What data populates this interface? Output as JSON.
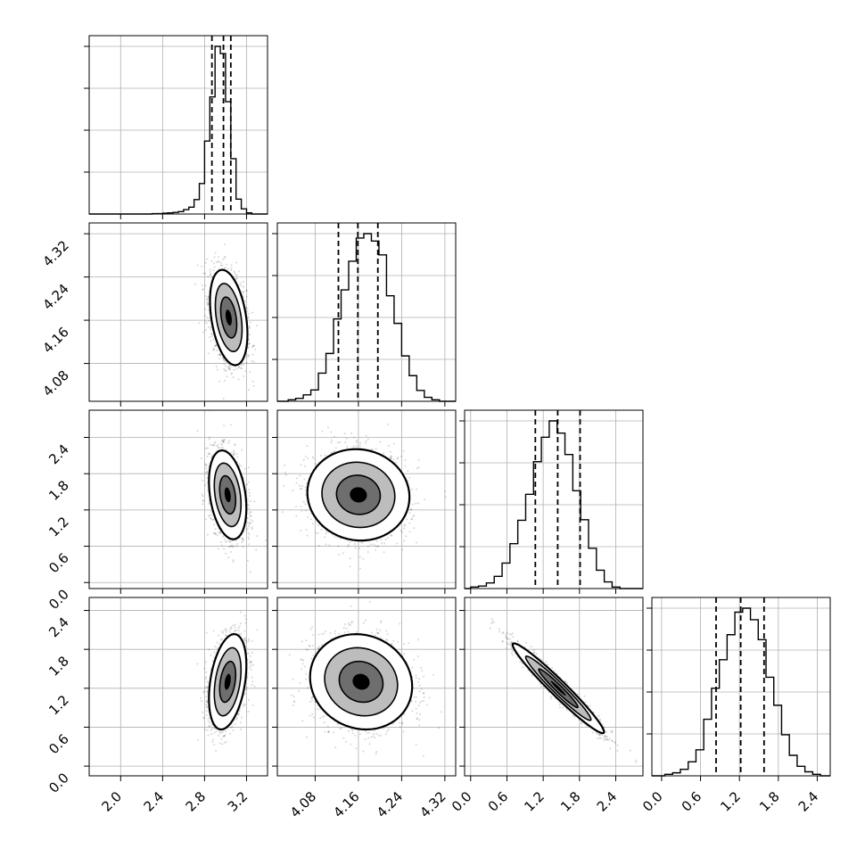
{
  "chart_data": {
    "type": "corner",
    "parameters": 4,
    "grid": true,
    "quantile_lines": "dashed",
    "axes": [
      {
        "ticks": [
          2.0,
          2.4,
          2.8,
          3.2
        ],
        "labels": [
          "2.0",
          "2.4",
          "2.8",
          "3.2"
        ],
        "range": [
          1.7,
          3.4
        ]
      },
      {
        "ticks": [
          4.08,
          4.16,
          4.24,
          4.32
        ],
        "labels": [
          "4.08",
          "4.16",
          "4.24",
          "4.32"
        ],
        "range": [
          4.01,
          4.34
        ]
      },
      {
        "ticks": [
          0.0,
          0.6,
          1.2,
          1.8,
          2.4
        ],
        "labels": [
          "0.0",
          "0.6",
          "1.2",
          "1.8",
          "2.4"
        ],
        "range": [
          -0.1,
          2.85
        ]
      },
      {
        "ticks": [
          0.0,
          0.6,
          1.2,
          1.8,
          2.4
        ],
        "labels": [
          "0.0",
          "0.6",
          "1.2",
          "1.8",
          "2.4"
        ],
        "range": [
          -0.15,
          2.6
        ]
      }
    ],
    "marginals": [
      {
        "param": 0,
        "bin_edges": [
          2.3,
          2.35,
          2.4,
          2.45,
          2.5,
          2.55,
          2.6,
          2.65,
          2.7,
          2.75,
          2.8,
          2.85,
          2.9,
          2.95,
          3.0,
          3.05,
          3.1,
          3.15,
          3.2,
          3.25
        ],
        "counts": [
          1,
          1,
          2,
          3,
          4,
          6,
          11,
          17,
          36,
          76,
          182,
          292,
          418,
          400,
          280,
          138,
          37,
          13,
          3
        ],
        "quantiles": [
          2.87,
          2.98,
          3.05
        ]
      },
      {
        "param": 1,
        "bin_edges": [
          4.03,
          4.044,
          4.058,
          4.072,
          4.086,
          4.1,
          4.114,
          4.128,
          4.142,
          4.156,
          4.17,
          4.184,
          4.198,
          4.212,
          4.226,
          4.24,
          4.254,
          4.268,
          4.282,
          4.296,
          4.31
        ],
        "counts": [
          3,
          6,
          13,
          23,
          57,
          97,
          167,
          226,
          284,
          331,
          340,
          325,
          297,
          214,
          158,
          92,
          52,
          22,
          8,
          3
        ],
        "quantiles": [
          4.123,
          4.159,
          4.196
        ]
      },
      {
        "param": 2,
        "bin_edges": [
          0.0,
          0.13,
          0.26,
          0.39,
          0.52,
          0.65,
          0.78,
          0.91,
          1.04,
          1.17,
          1.3,
          1.43,
          1.56,
          1.69,
          1.82,
          1.95,
          2.08,
          2.21,
          2.34,
          2.47
        ],
        "counts": [
          3,
          5,
          11,
          24,
          50,
          88,
          134,
          185,
          249,
          297,
          329,
          305,
          263,
          192,
          135,
          79,
          36,
          13,
          3
        ],
        "quantiles": [
          1.07,
          1.44,
          1.81
        ]
      },
      {
        "param": 3,
        "bin_edges": [
          0.05,
          0.17,
          0.29,
          0.41,
          0.53,
          0.65,
          0.77,
          0.89,
          1.01,
          1.13,
          1.25,
          1.37,
          1.49,
          1.61,
          1.73,
          1.85,
          1.97,
          2.09,
          2.21,
          2.33,
          2.45
        ],
        "counts": [
          3,
          6,
          13,
          28,
          52,
          113,
          175,
          232,
          282,
          327,
          335,
          312,
          272,
          197,
          141,
          82,
          41,
          19,
          8,
          3
        ],
        "quantiles": [
          0.84,
          1.22,
          1.58
        ]
      }
    ],
    "joint": [
      {
        "x": 0,
        "y": 1,
        "center": [
          3.03,
          4.165
        ],
        "sigma": [
          0.085,
          0.042
        ],
        "rho": -0.35
      },
      {
        "x": 0,
        "y": 2,
        "center": [
          3.02,
          1.45
        ],
        "sigma": [
          0.085,
          0.35
        ],
        "rho": -0.3
      },
      {
        "x": 1,
        "y": 2,
        "center": [
          4.16,
          1.45
        ],
        "sigma": [
          0.045,
          0.36
        ],
        "rho": -0.05
      },
      {
        "x": 0,
        "y": 3,
        "center": [
          3.02,
          1.3
        ],
        "sigma": [
          0.085,
          0.35
        ],
        "rho": 0.35
      },
      {
        "x": 1,
        "y": 3,
        "center": [
          4.165,
          1.3
        ],
        "sigma": [
          0.045,
          0.35
        ],
        "rho": -0.1
      },
      {
        "x": 2,
        "y": 3,
        "center": [
          1.45,
          1.2
        ],
        "sigma": [
          0.36,
          0.33
        ],
        "rho": -0.97
      }
    ]
  }
}
